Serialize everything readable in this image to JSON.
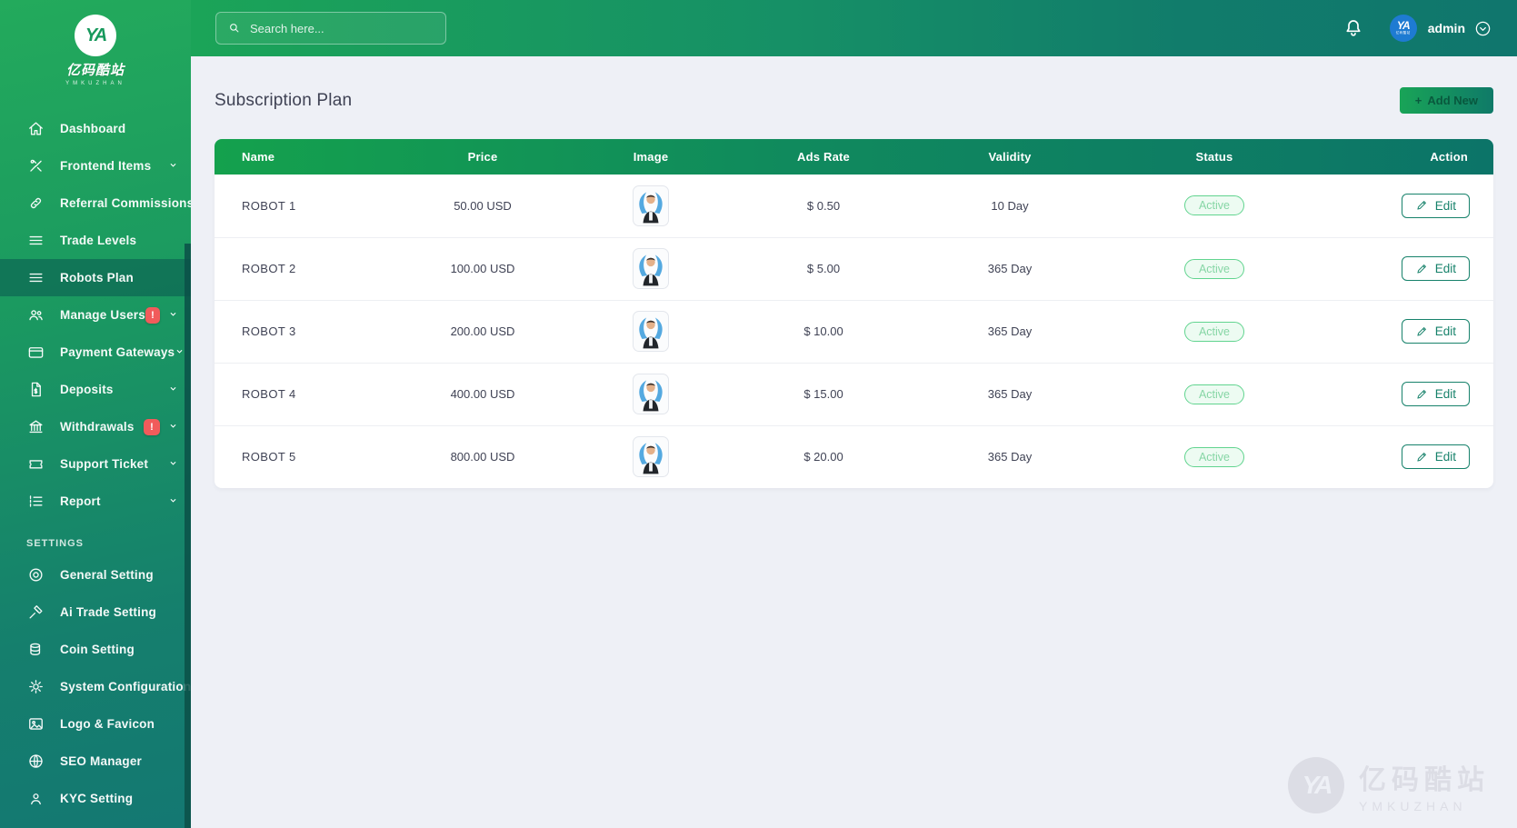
{
  "brand": {
    "monogram": "YA",
    "name_cn": "亿码酷站",
    "name_en": "YMKUZHAN"
  },
  "topbar": {
    "search_placeholder": "Search here...",
    "username": "admin"
  },
  "page": {
    "title": "Subscription Plan",
    "add_new_plus": "+",
    "add_new_label": "Add New"
  },
  "sidebar": {
    "settings_header": "SETTINGS",
    "items": [
      {
        "label": "Dashboard",
        "icon": "home-icon"
      },
      {
        "label": "Frontend Items",
        "icon": "tools-icon",
        "chevron": true
      },
      {
        "label": "Referral Commissions",
        "icon": "link-icon"
      },
      {
        "label": "Trade Levels",
        "icon": "list-icon"
      },
      {
        "label": "Robots Plan",
        "icon": "list-icon",
        "active": true
      },
      {
        "label": "Manage Users",
        "icon": "users-icon",
        "badge": "!",
        "chevron": true
      },
      {
        "label": "Payment Gateways",
        "icon": "card-icon",
        "chevron": true
      },
      {
        "label": "Deposits",
        "icon": "file-icon",
        "chevron": true
      },
      {
        "label": "Withdrawals",
        "icon": "bank-icon",
        "badge": "!",
        "chevron": true
      },
      {
        "label": "Support Ticket",
        "icon": "ticket-icon",
        "chevron": true
      },
      {
        "label": "Report",
        "icon": "report-icon",
        "chevron": true
      }
    ],
    "settings_items": [
      {
        "label": "General Setting",
        "icon": "disc-icon"
      },
      {
        "label": "Ai Trade Setting",
        "icon": "hammer-icon"
      },
      {
        "label": "Coin Setting",
        "icon": "coins-icon"
      },
      {
        "label": "System Configuration",
        "icon": "gear-icon"
      },
      {
        "label": "Logo & Favicon",
        "icon": "image-icon"
      },
      {
        "label": "SEO Manager",
        "icon": "globe-icon"
      },
      {
        "label": "KYC Setting",
        "icon": "user-icon"
      }
    ]
  },
  "table": {
    "headers": [
      "Name",
      "Price",
      "Image",
      "Ads Rate",
      "Validity",
      "Status",
      "Action"
    ],
    "rows": [
      {
        "name": "ROBOT 1",
        "price": "50.00 USD",
        "image": "robot-avatar",
        "ads_rate": "$ 0.50",
        "validity": "10 Day",
        "status": "Active",
        "action": "Edit"
      },
      {
        "name": "ROBOT 2",
        "price": "100.00 USD",
        "image": "robot-avatar",
        "ads_rate": "$ 5.00",
        "validity": "365 Day",
        "status": "Active",
        "action": "Edit"
      },
      {
        "name": "ROBOT 3",
        "price": "200.00 USD",
        "image": "robot-avatar",
        "ads_rate": "$ 10.00",
        "validity": "365 Day",
        "status": "Active",
        "action": "Edit"
      },
      {
        "name": "ROBOT 4",
        "price": "400.00 USD",
        "image": "robot-avatar",
        "ads_rate": "$ 15.00",
        "validity": "365 Day",
        "status": "Active",
        "action": "Edit"
      },
      {
        "name": "ROBOT 5",
        "price": "800.00 USD",
        "image": "robot-avatar",
        "ads_rate": "$ 20.00",
        "validity": "365 Day",
        "status": "Active",
        "action": "Edit"
      }
    ]
  },
  "watermark": {
    "monogram": "YA",
    "name_cn": "亿码酷站",
    "name_en": "YMKUZHAN"
  },
  "colors": {
    "accent_green": "#16a34a",
    "teal": "#0f766e",
    "badge_red": "#f15b5b",
    "active_pill_border": "#61d48f",
    "active_pill_text": "#86d6a5",
    "content_bg": "#eef0f6"
  }
}
